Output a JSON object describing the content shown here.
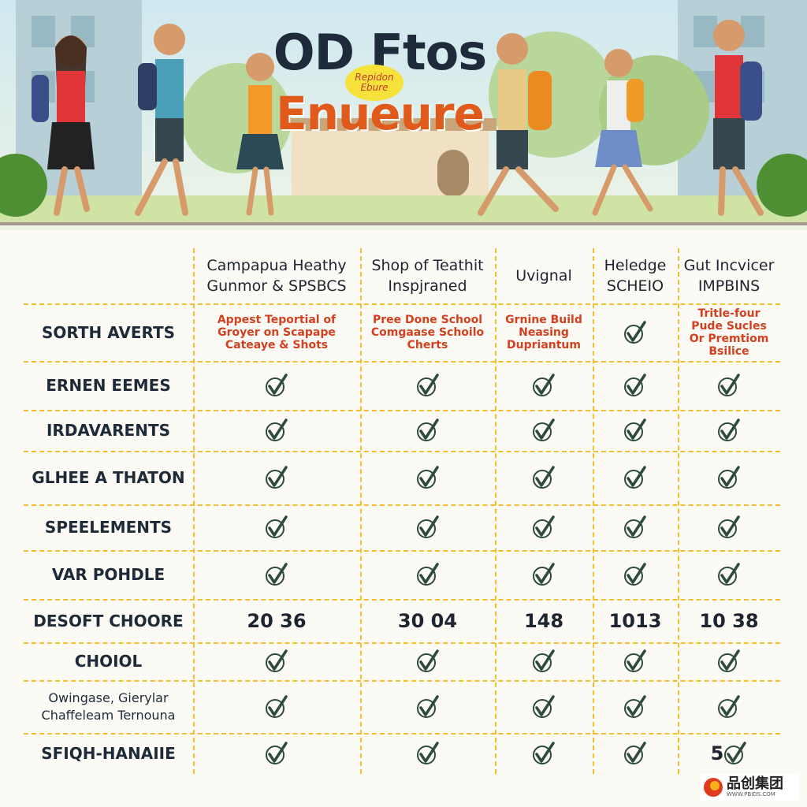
{
  "header": {
    "title": "OD Ftos",
    "badge": "Repidon Ebure",
    "subtitle": "Enueure"
  },
  "table": {
    "columns": [
      "Campapua Heathy Gunmor & SPSBCS",
      "Shop of Teathit Inspjraned",
      "Uvignal",
      "Heledge SCHEIO",
      "Gut Incvicer IMPBINS"
    ],
    "rows": [
      {
        "label": "SORTH AVERTS",
        "cells": [
          "Appest Teportial of Groyer on Scapape Cateaye & Shots",
          "Pree Done School Comgaase Schoilo Cherts",
          "Grnine Build Neasing Dupriantum",
          null,
          "Tritle-four Pude Sucles Or Premtiom Bsilice"
        ]
      },
      {
        "label": "ERNEN EEMES",
        "cells": [
          null,
          null,
          null,
          null,
          null
        ]
      },
      {
        "label": "IRDAVARENTS",
        "cells": [
          null,
          null,
          null,
          null,
          null
        ]
      },
      {
        "label": "GLHEE A THATON",
        "cells": [
          null,
          null,
          null,
          null,
          null
        ]
      },
      {
        "label": "SPEELEMENTS",
        "cells": [
          null,
          null,
          null,
          null,
          null
        ]
      },
      {
        "label": "VAR POHDLE",
        "cells": [
          null,
          null,
          null,
          null,
          null
        ]
      },
      {
        "label": "DESOFT CHOORE",
        "cells": [
          "20 36",
          "30 04",
          "148",
          "1013",
          "10 38"
        ]
      },
      {
        "label": "CHOIOL",
        "cells": [
          null,
          null,
          null,
          null,
          null
        ]
      },
      {
        "label": "Owingase, Gierylar Chaffeleam Ternouna",
        "cells": [
          null,
          null,
          null,
          null,
          null
        ]
      },
      {
        "label": "SFIQH-HANAIIE",
        "cells": [
          null,
          null,
          null,
          null,
          {
            "text": "5",
            "check": true
          }
        ]
      }
    ]
  },
  "watermark": {
    "name": "品创集团",
    "url": "WWW.PBIDS.COM"
  }
}
